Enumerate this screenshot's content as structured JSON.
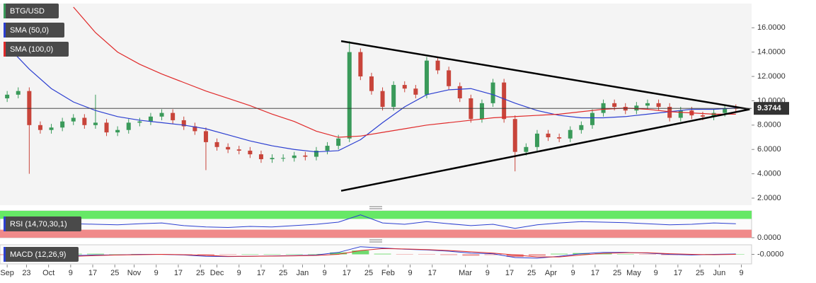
{
  "chart_data": [
    {
      "type": "candlestick",
      "title": "BTG/USD",
      "x": [
        0,
        4,
        8,
        12,
        16,
        20,
        24,
        28,
        32,
        36,
        40,
        44,
        48,
        52,
        56,
        60,
        64,
        68,
        72,
        76,
        80,
        84,
        88,
        92,
        96,
        100,
        104,
        108,
        112,
        116,
        120,
        124,
        128,
        132,
        136,
        140,
        144,
        148,
        152,
        156,
        160,
        164,
        168,
        172,
        176,
        180,
        184,
        188,
        192,
        196,
        200,
        204,
        208,
        212,
        216,
        220,
        224,
        228,
        232,
        236,
        240,
        244,
        248,
        252,
        256,
        260,
        264
      ],
      "open": [
        10.2,
        10.5,
        10.8,
        8.0,
        7.6,
        7.8,
        8.3,
        8.6,
        8.0,
        8.2,
        7.4,
        7.6,
        8.2,
        8.3,
        8.7,
        9.0,
        8.4,
        7.9,
        7.5,
        6.6,
        6.2,
        6.0,
        5.9,
        5.6,
        5.2,
        5.3,
        5.3,
        5.5,
        5.4,
        5.9,
        6.3,
        6.9,
        14.0,
        12.0,
        10.8,
        9.5,
        11.3,
        11.0,
        10.5,
        13.3,
        12.5,
        11.2,
        10.2,
        8.5,
        9.8,
        11.5,
        8.5,
        5.8,
        6.2,
        7.3,
        7.0,
        6.9,
        7.6,
        8.0,
        9.0,
        9.8,
        9.5,
        9.2,
        9.6,
        9.8,
        9.5,
        8.6,
        9.2,
        8.8,
        8.7,
        9.0,
        9.4
      ],
      "high": [
        10.8,
        11.1,
        11.1,
        8.3,
        8.1,
        8.6,
        8.9,
        8.9,
        10.5,
        8.5,
        7.9,
        8.5,
        8.6,
        9.0,
        9.3,
        9.3,
        8.7,
        8.2,
        7.8,
        6.9,
        6.5,
        6.3,
        6.2,
        5.9,
        5.6,
        5.6,
        5.8,
        5.8,
        6.2,
        6.6,
        7.2,
        14.9,
        14.3,
        12.3,
        11.1,
        11.6,
        11.6,
        11.3,
        13.6,
        13.6,
        12.8,
        11.5,
        10.5,
        10.1,
        11.8,
        11.8,
        8.8,
        6.5,
        7.6,
        7.6,
        7.3,
        7.9,
        8.3,
        9.3,
        10.1,
        10.1,
        9.8,
        9.9,
        10.1,
        10.1,
        9.8,
        9.5,
        9.5,
        9.1,
        9.3,
        9.7,
        9.7
      ],
      "low": [
        9.9,
        10.2,
        4.0,
        7.3,
        7.3,
        7.5,
        8.0,
        7.7,
        7.7,
        7.1,
        7.1,
        7.3,
        7.9,
        8.0,
        8.4,
        8.1,
        7.6,
        7.2,
        4.3,
        5.9,
        5.7,
        5.6,
        5.3,
        4.9,
        4.9,
        5.0,
        5.0,
        5.1,
        5.1,
        5.6,
        6.0,
        6.6,
        11.7,
        10.5,
        9.2,
        9.2,
        10.7,
        10.2,
        10.2,
        12.2,
        10.9,
        9.9,
        8.2,
        8.2,
        9.5,
        8.2,
        4.2,
        5.5,
        5.9,
        6.7,
        6.6,
        6.6,
        7.3,
        7.7,
        8.7,
        9.2,
        8.9,
        8.9,
        9.3,
        9.2,
        8.3,
        8.3,
        8.5,
        8.4,
        8.4,
        8.7,
        9.07
      ],
      "close": [
        10.5,
        10.8,
        8.0,
        7.6,
        7.8,
        8.3,
        8.6,
        8.0,
        8.2,
        7.4,
        7.6,
        8.2,
        8.3,
        8.7,
        9.0,
        8.4,
        7.9,
        7.5,
        6.6,
        6.2,
        6.0,
        5.9,
        5.6,
        5.2,
        5.3,
        5.3,
        5.5,
        5.4,
        5.9,
        6.3,
        6.9,
        14.0,
        12.0,
        10.8,
        9.5,
        11.3,
        11.0,
        10.5,
        13.3,
        12.5,
        11.2,
        10.2,
        8.5,
        9.8,
        11.5,
        8.5,
        5.8,
        6.2,
        7.3,
        7.0,
        6.9,
        7.6,
        8.0,
        9.0,
        9.8,
        9.5,
        9.2,
        9.6,
        9.8,
        9.5,
        8.6,
        9.2,
        8.8,
        8.7,
        9.0,
        9.4,
        9.37
      ],
      "up_color": "#3a9a5a",
      "down_color": "#c8443a",
      "series": [
        {
          "name": "SMA (50,0)",
          "color": "#2c3fd1",
          "x": [
            0,
            8,
            16,
            24,
            32,
            40,
            48,
            56,
            64,
            72,
            80,
            88,
            96,
            104,
            112,
            120,
            128,
            136,
            144,
            152,
            160,
            168,
            176,
            184,
            192,
            200,
            208,
            216,
            224,
            232,
            240,
            248,
            256,
            264
          ],
          "values": [
            14.5,
            12.6,
            11.0,
            9.9,
            9.2,
            8.7,
            8.4,
            8.2,
            8.0,
            7.7,
            7.2,
            6.7,
            6.3,
            6.0,
            5.8,
            5.9,
            6.8,
            8.2,
            9.5,
            10.5,
            10.9,
            11.0,
            10.5,
            9.8,
            9.2,
            8.8,
            8.6,
            8.6,
            8.7,
            8.9,
            9.1,
            9.3,
            9.3,
            9.4
          ]
        },
        {
          "name": "SMA (100,0)",
          "color": "#e02a2a",
          "x": [
            0,
            8,
            16,
            24,
            32,
            40,
            48,
            56,
            64,
            72,
            80,
            88,
            96,
            104,
            112,
            120,
            128,
            136,
            144,
            152,
            160,
            168,
            176,
            184,
            192,
            200,
            208,
            216,
            224,
            232,
            240,
            248,
            256,
            264
          ],
          "values": [
            null,
            null,
            null,
            17.7,
            15.6,
            14.0,
            13.0,
            12.2,
            11.5,
            10.8,
            10.2,
            9.6,
            8.9,
            8.3,
            7.5,
            7.0,
            7.1,
            7.4,
            7.7,
            8.0,
            8.2,
            8.4,
            8.6,
            8.7,
            8.8,
            8.9,
            9.1,
            9.3,
            9.4,
            9.3,
            9.1,
            9.0,
            8.9,
            8.9
          ]
        }
      ],
      "trendlines": [
        {
          "x": [
            121,
            269
          ],
          "y": [
            14.9,
            9.3
          ]
        },
        {
          "x": [
            121,
            269
          ],
          "y": [
            2.6,
            9.3
          ]
        }
      ],
      "last_price": 9.3744,
      "xlim": [
        -2.6,
        269.7
      ],
      "ylim": [
        1.42,
        17.99
      ],
      "yticks": [
        {
          "value": 2,
          "label": "2.0000"
        },
        {
          "value": 4,
          "label": "4.0000"
        },
        {
          "value": 6,
          "label": "6.0000"
        },
        {
          "value": 8,
          "label": "8.0000"
        },
        {
          "value": 10,
          "label": "10.0000"
        },
        {
          "value": 12,
          "label": "12.0000"
        },
        {
          "value": 14,
          "label": "14.0000"
        },
        {
          "value": 16,
          "label": "16.0000"
        }
      ]
    },
    {
      "type": "line",
      "title": "RSI (14,70,30,1)",
      "x": [
        0,
        8,
        16,
        24,
        32,
        40,
        48,
        56,
        64,
        72,
        80,
        88,
        96,
        104,
        112,
        120,
        128,
        136,
        144,
        152,
        160,
        168,
        176,
        184,
        192,
        200,
        208,
        216,
        224,
        232,
        240,
        248,
        256,
        264
      ],
      "series": [
        {
          "color": "#2c3fd1",
          "values": [
            55,
            45,
            48,
            52,
            50,
            48,
            52,
            55,
            45,
            40,
            38,
            42,
            40,
            45,
            50,
            58,
            85,
            55,
            50,
            60,
            52,
            45,
            50,
            35,
            48,
            55,
            60,
            58,
            56,
            52,
            48,
            50,
            55,
            52
          ]
        }
      ],
      "upper_band": 70,
      "lower_band": 30,
      "upper_color": "#66e866",
      "lower_color": "#f08a8a",
      "xlim": [
        -2.6,
        269.7
      ],
      "ylim": [
        0,
        100
      ],
      "yticks": [
        {
          "value": 0,
          "label": "0.0000"
        }
      ]
    },
    {
      "type": "macd",
      "title": "MACD (12,26,9)",
      "x": [
        0,
        8,
        16,
        24,
        32,
        40,
        48,
        56,
        64,
        72,
        80,
        88,
        96,
        104,
        112,
        120,
        128,
        136,
        144,
        152,
        160,
        168,
        176,
        184,
        192,
        200,
        208,
        216,
        224,
        232,
        240,
        248,
        256,
        264
      ],
      "series": [
        {
          "color": "#2c3fd1",
          "values": [
            -0.4,
            -0.5,
            -0.3,
            -0.2,
            -0.1,
            -0.1,
            0.0,
            0.0,
            -0.1,
            -0.3,
            -0.35,
            -0.3,
            -0.25,
            -0.2,
            -0.1,
            0.3,
            1.2,
            1.0,
            0.8,
            0.7,
            0.5,
            0.2,
            0.1,
            -0.5,
            -0.6,
            -0.3,
            0.1,
            0.3,
            0.3,
            0.2,
            0.0,
            -0.1,
            0.0,
            0.05
          ]
        },
        {
          "color": "#e02a2a",
          "values": [
            -0.3,
            -0.45,
            -0.4,
            -0.3,
            -0.2,
            -0.1,
            -0.05,
            0.0,
            -0.05,
            -0.15,
            -0.3,
            -0.3,
            -0.28,
            -0.24,
            -0.16,
            0.0,
            0.6,
            0.9,
            0.85,
            0.75,
            0.6,
            0.4,
            0.2,
            -0.1,
            -0.4,
            -0.4,
            -0.1,
            0.15,
            0.25,
            0.25,
            0.1,
            0.0,
            -0.05,
            0.0
          ]
        }
      ],
      "histogram": {
        "up_color": "#33cc33",
        "down_color": "#e05555",
        "values": [
          -0.1,
          -0.05,
          0.1,
          0.1,
          0.1,
          0,
          0.05,
          0,
          -0.05,
          -0.15,
          -0.05,
          0,
          0.03,
          0.04,
          0.06,
          0.3,
          0.6,
          0.1,
          -0.05,
          -0.05,
          -0.1,
          -0.2,
          -0.1,
          -0.4,
          -0.2,
          0.1,
          0.2,
          0.15,
          0.05,
          -0.05,
          -0.1,
          -0.1,
          0.05,
          0.05
        ]
      },
      "xlim": [
        -2.6,
        269.7
      ],
      "ylim": [
        -1.5,
        1.5
      ],
      "yticks": [
        {
          "value": 0,
          "label": "-0.0000"
        }
      ],
      "xticks": [
        {
          "value": 0,
          "label": "Sep"
        },
        {
          "value": 7,
          "label": "23"
        },
        {
          "value": 15,
          "label": "Oct"
        },
        {
          "value": 23,
          "label": "9"
        },
        {
          "value": 31,
          "label": "17"
        },
        {
          "value": 39,
          "label": "25"
        },
        {
          "value": 46,
          "label": "Nov"
        },
        {
          "value": 54,
          "label": "9"
        },
        {
          "value": 62,
          "label": "17"
        },
        {
          "value": 70,
          "label": "25"
        },
        {
          "value": 76,
          "label": "Dec"
        },
        {
          "value": 84,
          "label": "9"
        },
        {
          "value": 92,
          "label": "17"
        },
        {
          "value": 100,
          "label": "25"
        },
        {
          "value": 107,
          "label": "Jan"
        },
        {
          "value": 115,
          "label": "9"
        },
        {
          "value": 123,
          "label": "17"
        },
        {
          "value": 131,
          "label": "25"
        },
        {
          "value": 138,
          "label": "Feb"
        },
        {
          "value": 146,
          "label": "9"
        },
        {
          "value": 154,
          "label": "17"
        },
        {
          "value": 166,
          "label": "Mar"
        },
        {
          "value": 174,
          "label": "9"
        },
        {
          "value": 182,
          "label": "17"
        },
        {
          "value": 190,
          "label": "25"
        },
        {
          "value": 197,
          "label": "Apr"
        },
        {
          "value": 205,
          "label": "9"
        },
        {
          "value": 213,
          "label": "17"
        },
        {
          "value": 221,
          "label": "25"
        },
        {
          "value": 227,
          "label": "May"
        },
        {
          "value": 235,
          "label": "9"
        },
        {
          "value": 243,
          "label": "17"
        },
        {
          "value": 251,
          "label": "25"
        },
        {
          "value": 258,
          "label": "Jun"
        },
        {
          "value": 266,
          "label": "9"
        }
      ]
    }
  ]
}
